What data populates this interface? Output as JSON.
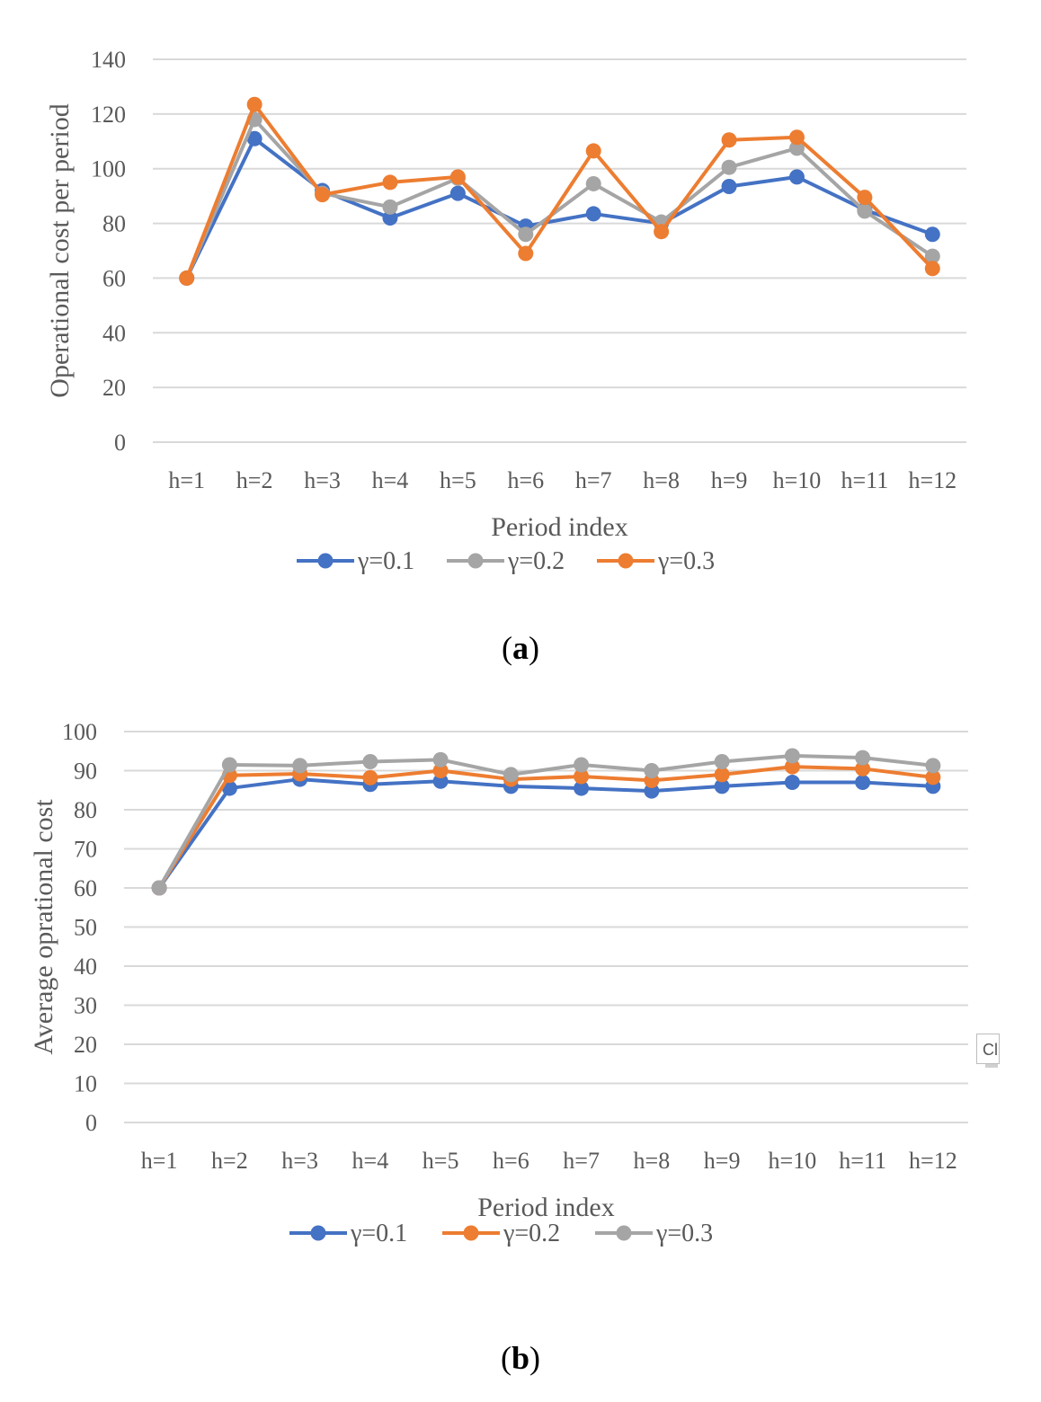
{
  "chart_data": [
    {
      "type": "line",
      "panel_label": "a",
      "ylabel": "Operational cost per period",
      "xlabel": "Period index",
      "ylim": [
        0,
        140
      ],
      "ytick_step": 20,
      "categories": [
        "h=1",
        "h=2",
        "h=3",
        "h=4",
        "h=5",
        "h=6",
        "h=7",
        "h=8",
        "h=9",
        "h=10",
        "h=11",
        "h=12"
      ],
      "series": [
        {
          "name": "γ=0.1",
          "color": "#4472c4",
          "values": [
            60,
            111,
            92,
            82,
            91,
            79,
            83.5,
            80,
            93.5,
            97,
            85,
            76
          ]
        },
        {
          "name": "γ=0.2",
          "color": "#a5a5a5",
          "values": [
            60,
            118,
            91,
            86,
            96.5,
            76,
            94.5,
            80.5,
            100.5,
            107.5,
            84.5,
            68
          ]
        },
        {
          "name": "γ=0.3",
          "color": "#ed7d31",
          "values": [
            60,
            123.5,
            90.5,
            95,
            97,
            69,
            106.5,
            77,
            110.5,
            111.5,
            89.5,
            63.5
          ]
        }
      ]
    },
    {
      "type": "line",
      "panel_label": "b",
      "ylabel": "Average oprational cost",
      "xlabel": "Period index",
      "ylim": [
        0,
        100
      ],
      "ytick_step": 10,
      "categories": [
        "h=1",
        "h=2",
        "h=3",
        "h=4",
        "h=5",
        "h=6",
        "h=7",
        "h=8",
        "h=9",
        "h=10",
        "h=11",
        "h=12"
      ],
      "series": [
        {
          "name": "γ=0.1",
          "color": "#4472c4",
          "values": [
            60,
            85.5,
            87.8,
            86.5,
            87.3,
            86,
            85.5,
            84.8,
            86,
            87,
            87,
            86
          ]
        },
        {
          "name": "γ=0.2",
          "color": "#ed7d31",
          "values": [
            60,
            88.8,
            89.2,
            88.2,
            90,
            87.8,
            88.5,
            87.5,
            89,
            91,
            90.5,
            88.3
          ]
        },
        {
          "name": "γ=0.3",
          "color": "#a5a5a5",
          "values": [
            60,
            91.5,
            91.3,
            92.3,
            92.8,
            89,
            91.5,
            90,
            92.3,
            93.8,
            93.3,
            91.3
          ]
        }
      ]
    }
  ],
  "captions": {
    "a": "a",
    "b": "b"
  },
  "control_label": "Cl"
}
